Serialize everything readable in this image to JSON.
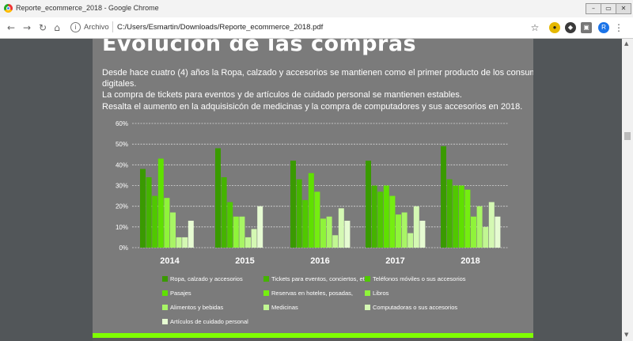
{
  "browser": {
    "window_title": "Reporte_ecommerce_2018 - Google Chrome",
    "omnibox_label": "Archivo",
    "url": "C:/Users/Esmartin/Downloads/Reporte_ecommerce_2018.pdf"
  },
  "document": {
    "heading": "Evolución de las compras",
    "paragraph_lines": [
      "Desde hace cuatro (4) años la Ropa, calzado y accesorios se mantienen como el primer producto de los consumidores",
      "digitales.",
      "La compra de tickets para eventos y de artículos de cuidado personal se mantienen estables.",
      "Resalta el aumento en la  adquisisicón de medicinas y la compra de computadores y sus accesorios en 2018."
    ]
  },
  "chart_data": {
    "type": "bar",
    "categories": [
      "2014",
      "2015",
      "2016",
      "2017",
      "2018"
    ],
    "ylim": [
      0,
      60
    ],
    "yticks": [
      "0%",
      "10%",
      "20%",
      "30%",
      "40%",
      "50%",
      "60%"
    ],
    "grid": true,
    "legend_position": "bottom",
    "series": [
      {
        "name": "Ropa, calzado y accesorios",
        "color": "#3a9a00",
        "values": [
          38,
          48,
          42,
          42,
          49
        ]
      },
      {
        "name": "Tickets para eventos, conciertos, etc.",
        "color": "#45b300",
        "values": [
          34,
          34,
          33,
          30,
          33
        ]
      },
      {
        "name": "Teléfonos móviles o sus accesorios",
        "color": "#50c800",
        "values": [
          25,
          22,
          23,
          27,
          30
        ]
      },
      {
        "name": "Pasajes",
        "color": "#5fe000",
        "values": [
          43,
          null,
          36,
          30,
          30
        ]
      },
      {
        "name": "Reservas en hoteles, posadas,",
        "color": "#75ee10",
        "values": [
          null,
          null,
          27,
          25,
          28
        ]
      },
      {
        "name": "Libros",
        "color": "#8ff43a",
        "values": [
          24,
          15,
          14,
          16,
          15
        ]
      },
      {
        "name": "Alimentos y bebidas",
        "color": "#a8f565",
        "values": [
          17,
          15,
          15,
          17,
          20
        ]
      },
      {
        "name": "Medicinas",
        "color": "#c1f792",
        "values": [
          5,
          5,
          6,
          7,
          10
        ]
      },
      {
        "name": "Computadoras o sus accesorios",
        "color": "#d4f8b3",
        "values": [
          5,
          9,
          19,
          20,
          22
        ]
      },
      {
        "name": "Artículos de cuidado personal",
        "color": "#e6fbd2",
        "values": [
          13,
          20,
          13,
          13,
          15
        ]
      }
    ]
  }
}
